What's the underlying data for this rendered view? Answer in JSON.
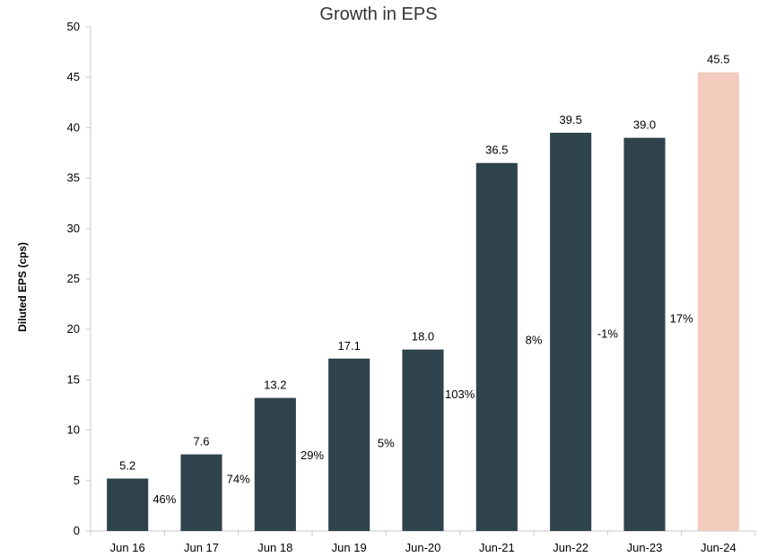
{
  "chart_data": {
    "type": "bar",
    "title": "Growth in EPS",
    "xlabel": "",
    "ylabel": "Diluted EPS (cps)",
    "ylim": [
      0,
      50
    ],
    "yticks": [
      0,
      5,
      10,
      15,
      20,
      25,
      30,
      35,
      40,
      45,
      50
    ],
    "grid": false,
    "categories": [
      "Jun 16",
      "Jun 17",
      "Jun 18",
      "Jun 19",
      "Jun-20",
      "Jun-21",
      "Jun-22",
      "Jun-23",
      "Jun-24"
    ],
    "values": [
      5.2,
      7.6,
      13.2,
      17.1,
      18.0,
      36.5,
      39.5,
      39.0,
      45.5
    ],
    "value_labels": [
      "5.2",
      "7.6",
      "13.2",
      "17.1",
      "18.0",
      "36.5",
      "39.5",
      "39.0",
      "45.5"
    ],
    "growth_labels": [
      "46%",
      "74%",
      "29%",
      "5%",
      "103%",
      "8%",
      "-1%",
      "17%"
    ],
    "bar_colors": [
      "#2f434c",
      "#2f434c",
      "#2f434c",
      "#2f434c",
      "#2f434c",
      "#2f434c",
      "#2f434c",
      "#2f434c",
      "#f2cbbd"
    ]
  }
}
